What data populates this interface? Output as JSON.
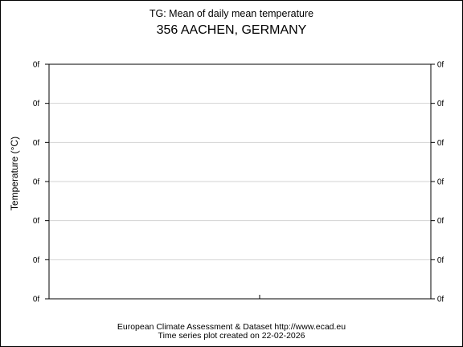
{
  "chart_data": {
    "type": "line",
    "title": "TG: Mean of daily mean temperature",
    "subtitle": "356 AACHEN, GERMANY",
    "ylabel": "Temperature (°C)",
    "xlabel": "",
    "y_tick_labels": [
      "0f",
      "0f",
      "0f",
      "0f",
      "0f",
      "0f",
      "0f"
    ],
    "series": [],
    "grid": "horizontal",
    "legend": "none"
  },
  "footer": {
    "credit": "European Climate Assessment & Dataset  http://www.ecad.eu",
    "created": "Time series plot created on 22-02-2026"
  }
}
